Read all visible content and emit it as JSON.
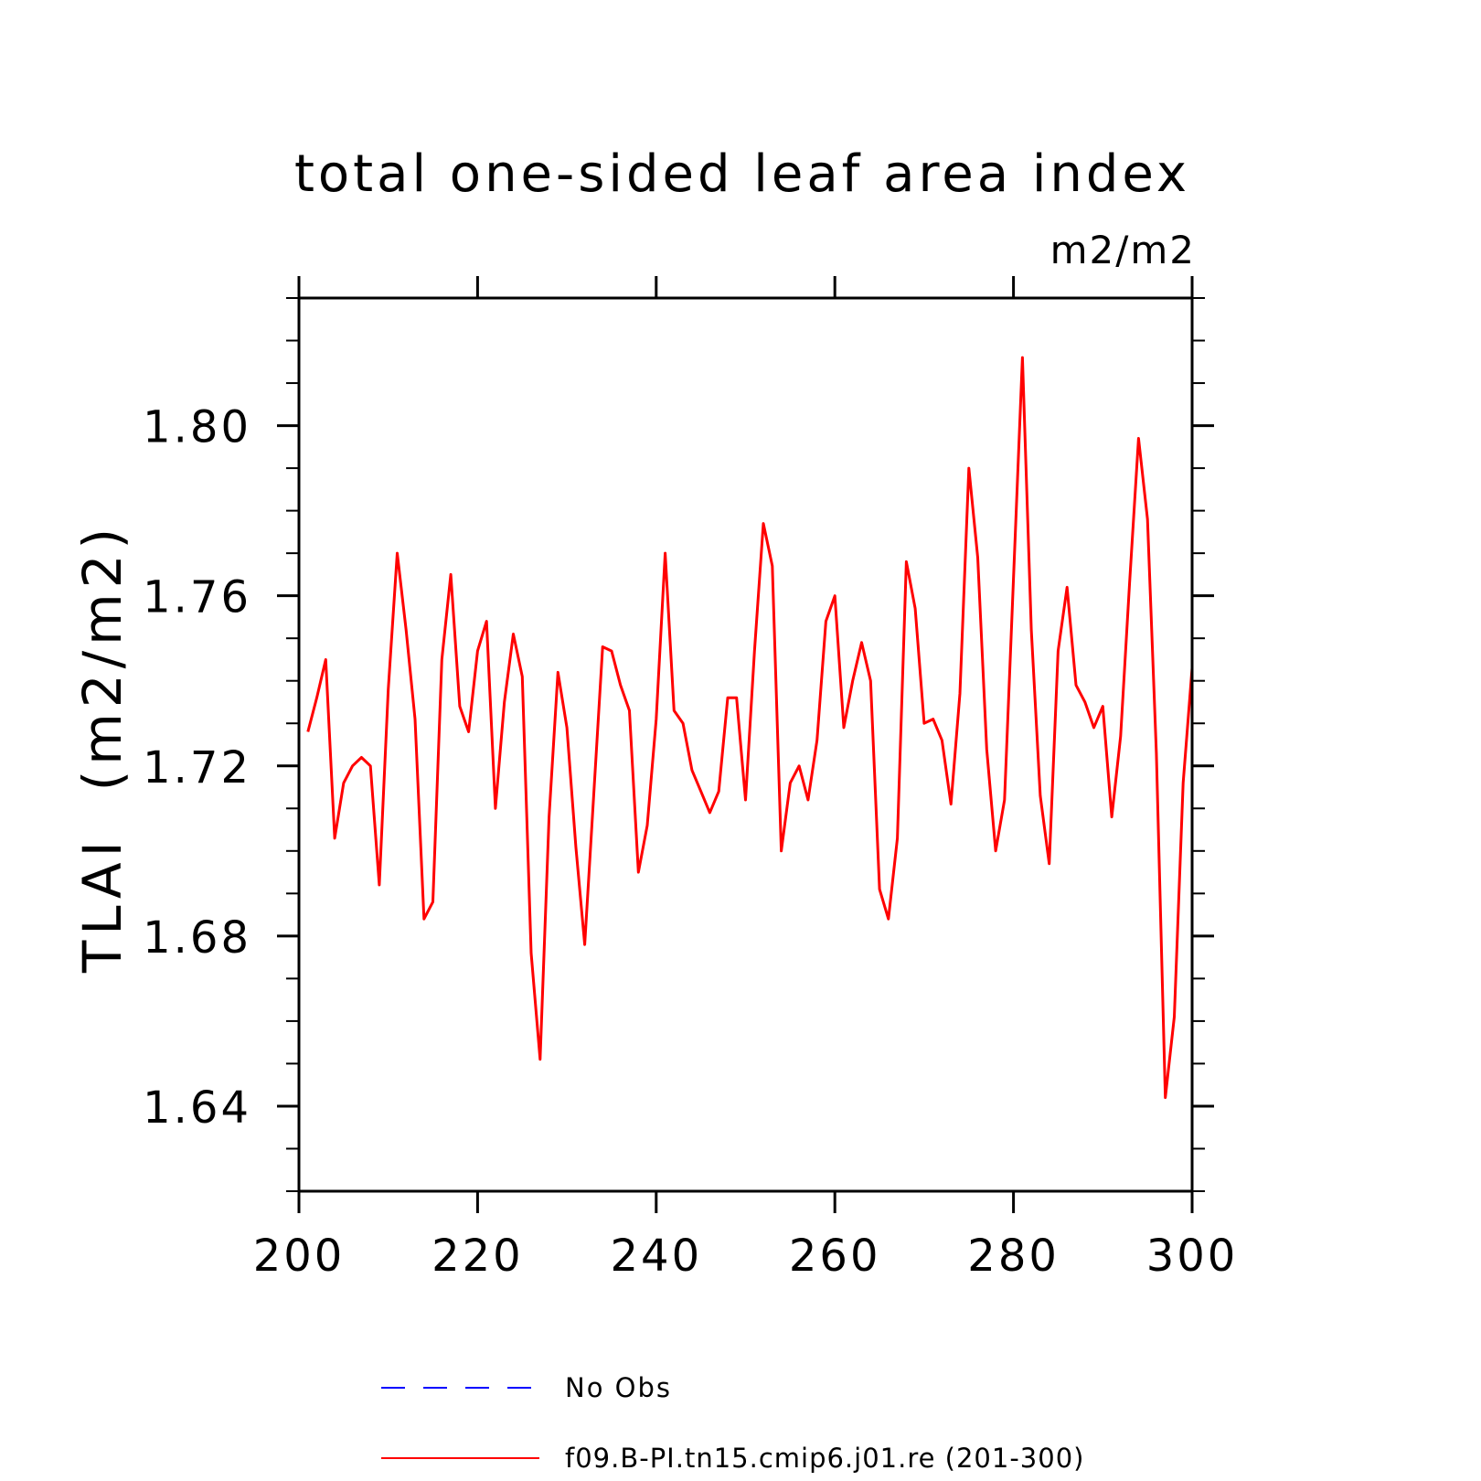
{
  "chart_data": {
    "type": "line",
    "title": "total one-sided leaf area index",
    "units_label": "m2/m2",
    "ylabel": "TLAI  (m2/m2)",
    "xlabel": "",
    "xlim": [
      200,
      300
    ],
    "ylim": [
      1.62,
      1.83
    ],
    "x_ticks": [
      "200",
      "220",
      "240",
      "260",
      "280",
      "300"
    ],
    "y_ticks": [
      "1.64",
      "1.68",
      "1.72",
      "1.76",
      "1.80"
    ],
    "grid": false,
    "legend_position": "bottom",
    "legend": [
      {
        "label": "No Obs",
        "color": "#0000ff",
        "style": "dashed"
      },
      {
        "label": "f09.B-PI.tn15.cmip6.j01.re (201-300)",
        "color": "#ff0000",
        "style": "solid"
      }
    ],
    "series": [
      {
        "name": "f09.B-PI.tn15.cmip6.j01.re (201-300)",
        "color": "#ff0000",
        "x": [
          201,
          202,
          203,
          204,
          205,
          206,
          207,
          208,
          209,
          210,
          211,
          212,
          213,
          214,
          215,
          216,
          217,
          218,
          219,
          220,
          221,
          222,
          223,
          224,
          225,
          226,
          227,
          228,
          229,
          230,
          231,
          232,
          233,
          234,
          235,
          236,
          237,
          238,
          239,
          240,
          241,
          242,
          243,
          244,
          245,
          246,
          247,
          248,
          249,
          250,
          251,
          252,
          253,
          254,
          255,
          256,
          257,
          258,
          259,
          260,
          261,
          262,
          263,
          264,
          265,
          266,
          267,
          268,
          269,
          270,
          271,
          272,
          273,
          274,
          275,
          276,
          277,
          278,
          279,
          280,
          281,
          282,
          283,
          284,
          285,
          286,
          287,
          288,
          289,
          290,
          291,
          292,
          293,
          294,
          295,
          296,
          297,
          298,
          299,
          300
        ],
        "y": [
          1.728,
          1.736,
          1.745,
          1.703,
          1.716,
          1.72,
          1.722,
          1.72,
          1.692,
          1.738,
          1.77,
          1.752,
          1.731,
          1.684,
          1.688,
          1.745,
          1.765,
          1.734,
          1.728,
          1.747,
          1.754,
          1.71,
          1.735,
          1.751,
          1.741,
          1.676,
          1.651,
          1.708,
          1.742,
          1.729,
          1.701,
          1.678,
          1.713,
          1.748,
          1.747,
          1.739,
          1.733,
          1.695,
          1.706,
          1.731,
          1.77,
          1.733,
          1.73,
          1.719,
          1.714,
          1.709,
          1.714,
          1.736,
          1.736,
          1.712,
          1.747,
          1.777,
          1.767,
          1.7,
          1.716,
          1.72,
          1.712,
          1.726,
          1.754,
          1.76,
          1.729,
          1.74,
          1.749,
          1.74,
          1.691,
          1.684,
          1.703,
          1.768,
          1.757,
          1.73,
          1.731,
          1.726,
          1.711,
          1.737,
          1.79,
          1.769,
          1.724,
          1.7,
          1.712,
          1.764,
          1.816,
          1.752,
          1.713,
          1.697,
          1.747,
          1.762,
          1.739,
          1.735,
          1.729,
          1.734,
          1.708,
          1.727,
          1.763,
          1.797,
          1.778,
          1.723,
          1.642,
          1.661,
          1.716,
          1.743
        ]
      }
    ]
  }
}
